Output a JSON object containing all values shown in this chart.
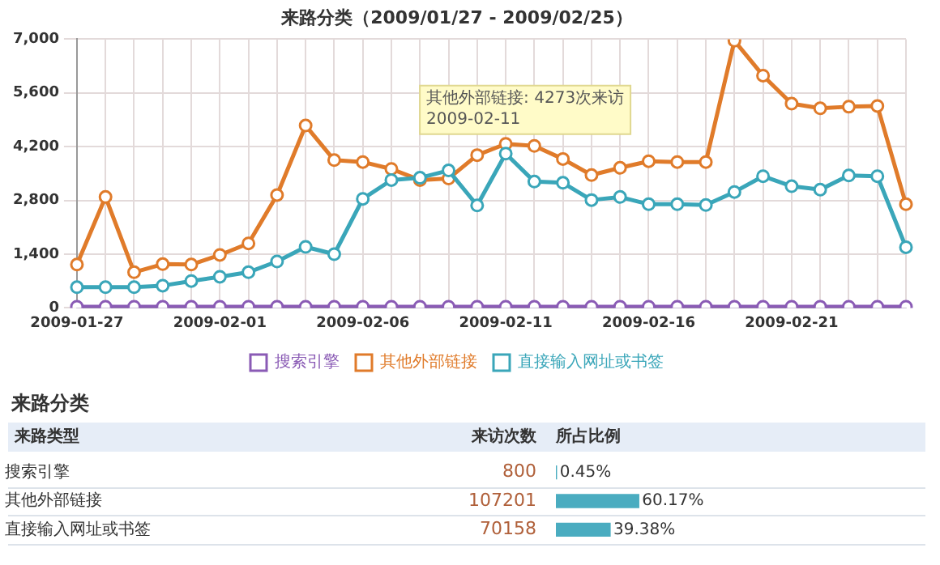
{
  "chart_data": [
    {
      "type": "line",
      "title": "来路分类（2009/01/27 - 2009/02/25）",
      "categories": [
        "2009-01-27",
        null,
        null,
        null,
        null,
        "2009-02-01",
        null,
        null,
        null,
        null,
        "2009-02-06",
        null,
        null,
        null,
        null,
        "2009-02-11",
        null,
        null,
        null,
        null,
        "2009-02-16",
        null,
        null,
        null,
        null,
        "2009-02-21",
        null,
        null,
        null,
        null
      ],
      "series": [
        {
          "name": "搜索引擎",
          "color": "#8a5bb5",
          "values": [
            30,
            30,
            30,
            30,
            30,
            30,
            30,
            30,
            30,
            30,
            30,
            30,
            30,
            30,
            30,
            30,
            30,
            30,
            30,
            30,
            30,
            30,
            30,
            30,
            30,
            30,
            30,
            30,
            30,
            30
          ]
        },
        {
          "name": "其他外部链接",
          "color": "#e07b2a",
          "values": [
            1130,
            2890,
            930,
            1140,
            1130,
            1380,
            1680,
            2940,
            4750,
            3850,
            3800,
            3620,
            3330,
            3370,
            3980,
            4273,
            4220,
            3880,
            3460,
            3650,
            3820,
            3800,
            3800,
            6960,
            6050,
            5320,
            5200,
            5240,
            5260,
            2700
          ]
        },
        {
          "name": "直接输入网址或书签",
          "color": "#3aa6b9",
          "values": [
            540,
            540,
            540,
            580,
            700,
            810,
            930,
            1210,
            1590,
            1400,
            2840,
            3330,
            3390,
            3580,
            2670,
            4020,
            3290,
            3260,
            2810,
            2890,
            2700,
            2700,
            2680,
            3020,
            3430,
            3170,
            3080,
            3450,
            3430,
            1580
          ]
        }
      ],
      "ylim": [
        0,
        7000
      ],
      "yticks": [
        0,
        {
          "value": 1400,
          "label": "1,400"
        },
        {
          "value": 2800,
          "label": "2,800"
        },
        {
          "value": 4200,
          "label": "4,200"
        },
        {
          "value": 5600,
          "label": "5,600"
        },
        {
          "value": 7000,
          "label": "7,000"
        }
      ],
      "annotations": [
        {
          "text": "其他外部链接: 4273次来访\n2009-02-11",
          "x": "2009-02-11",
          "y": 4273
        }
      ],
      "grid": true,
      "legend": "bottom",
      "marker": "circle"
    },
    {
      "type": "bar",
      "orientation": "horizontal",
      "title": "来路分类",
      "ylabel": "来路类型",
      "xlabel": "所占比例",
      "categories": [
        "搜索引擎",
        "其他外部链接",
        "直接输入网址或书签"
      ],
      "values": [
        0.45,
        60.17,
        39.38
      ],
      "value_labels": [
        "0.45%",
        "60.17%",
        "39.38%"
      ],
      "color": "#4aacc0",
      "annotations": [
        "来访次数",
        "800",
        "107201",
        "70158"
      ]
    }
  ]
}
